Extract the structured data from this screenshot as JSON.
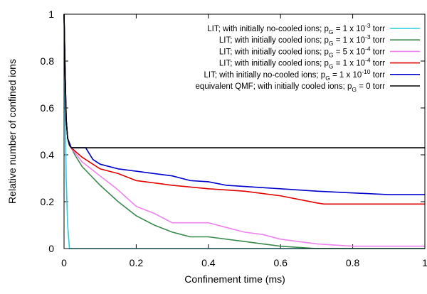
{
  "chart_data": {
    "type": "line",
    "xlabel": "Confinement time (ms)",
    "ylabel": "Relative number of confined ions",
    "xlim": [
      0,
      1
    ],
    "ylim": [
      0,
      1
    ],
    "xticks": [
      0,
      0.2,
      0.4,
      0.6,
      0.8,
      1
    ],
    "yticks": [
      0,
      0.2,
      0.4,
      0.6,
      0.8,
      1
    ],
    "legend": "upper right",
    "series": [
      {
        "name": "LIT; with initially no-cooled ions; pG = 1 x 10-3 torr",
        "color": "#22cfdf",
        "x": [
          0,
          0.003,
          0.006,
          0.01,
          0.015,
          1
        ],
        "values": [
          1,
          0.6,
          0.3,
          0.1,
          0,
          0
        ]
      },
      {
        "name": "LIT; with initially cooled ions; pG = 1 x 10-3 torr",
        "color": "#3a8a4e",
        "x": [
          0,
          0.003,
          0.006,
          0.01,
          0.02,
          0.03,
          0.05,
          0.1,
          0.15,
          0.2,
          0.25,
          0.3,
          0.35,
          0.4,
          0.5,
          0.55,
          0.6,
          0.7,
          1
        ],
        "values": [
          1,
          0.75,
          0.55,
          0.47,
          0.43,
          0.4,
          0.35,
          0.27,
          0.2,
          0.14,
          0.1,
          0.07,
          0.05,
          0.05,
          0.03,
          0.02,
          0.01,
          0,
          0
        ]
      },
      {
        "name": "LIT; with initially cooled ions; pG = 5 x 10-4 torr",
        "color": "#ee82ee",
        "x": [
          0,
          0.003,
          0.006,
          0.01,
          0.02,
          0.05,
          0.1,
          0.15,
          0.2,
          0.25,
          0.3,
          0.4,
          0.45,
          0.5,
          0.55,
          0.6,
          0.7,
          0.8,
          1
        ],
        "values": [
          1,
          0.75,
          0.55,
          0.47,
          0.43,
          0.37,
          0.31,
          0.25,
          0.18,
          0.15,
          0.11,
          0.11,
          0.09,
          0.07,
          0.06,
          0.04,
          0.02,
          0.01,
          0.01
        ]
      },
      {
        "name": "LIT; with initially cooled ions; pG = 1 x 10-4 torr",
        "color": "#e00000",
        "x": [
          0,
          0.003,
          0.006,
          0.01,
          0.02,
          0.05,
          0.1,
          0.15,
          0.2,
          0.25,
          0.3,
          0.4,
          0.5,
          0.6,
          0.7,
          0.72,
          1
        ],
        "values": [
          1,
          0.75,
          0.55,
          0.47,
          0.43,
          0.39,
          0.34,
          0.32,
          0.29,
          0.28,
          0.27,
          0.255,
          0.245,
          0.225,
          0.195,
          0.19,
          0.19
        ]
      },
      {
        "name": "LIT; with initially no-cooled ions; pG = 1 x 10-10 torr",
        "color": "#0000cc",
        "x": [
          0,
          0.003,
          0.006,
          0.01,
          0.02,
          0.06,
          0.08,
          0.1,
          0.15,
          0.2,
          0.25,
          0.3,
          0.35,
          0.4,
          0.45,
          0.5,
          0.6,
          0.7,
          0.9,
          1
        ],
        "values": [
          1,
          0.75,
          0.55,
          0.47,
          0.43,
          0.43,
          0.38,
          0.36,
          0.34,
          0.33,
          0.32,
          0.31,
          0.29,
          0.285,
          0.27,
          0.265,
          0.255,
          0.245,
          0.23,
          0.23
        ]
      },
      {
        "name": "equivalent QMF; with initially cooled ions; pG = 0 torr",
        "color": "#000000",
        "x": [
          0,
          0.003,
          0.006,
          0.01,
          0.015,
          0.02,
          1
        ],
        "values": [
          1,
          0.75,
          0.55,
          0.47,
          0.44,
          0.43,
          0.43
        ]
      }
    ]
  }
}
